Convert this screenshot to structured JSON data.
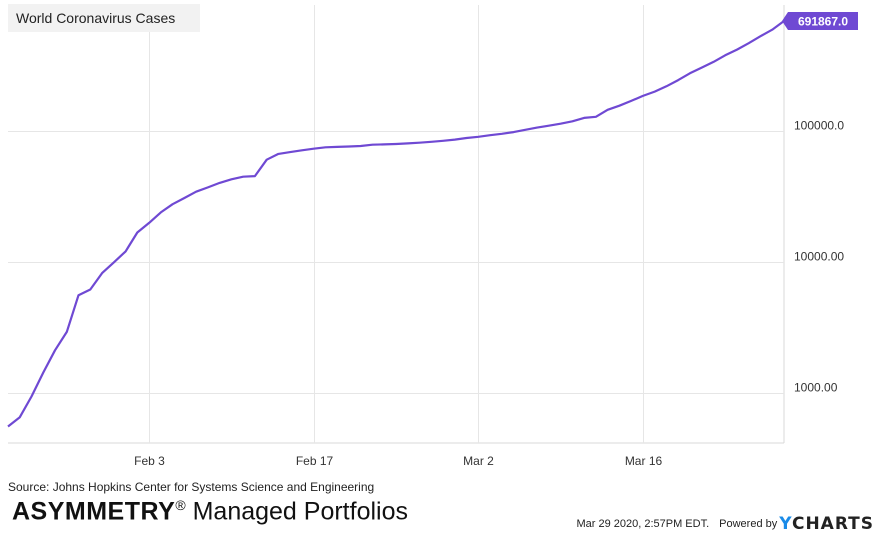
{
  "chart_data": {
    "type": "line",
    "title": "World Coronavirus Cases",
    "yscale": "log",
    "xlabel": "",
    "ylabel": "",
    "x_ticks": [
      "Feb 3",
      "Feb 17",
      "Mar 2",
      "Mar 16"
    ],
    "y_ticks": [
      "1000.00",
      "10000.00",
      "100000.0"
    ],
    "ylim": [
      500,
      1000000
    ],
    "xlim": [
      "2020-01-22",
      "2020-03-28"
    ],
    "grid": true,
    "last_value_label": "691867.0",
    "series": [
      {
        "color": "#6f49d3",
        "x": [
          "2020-01-22",
          "2020-01-23",
          "2020-01-24",
          "2020-01-25",
          "2020-01-26",
          "2020-01-27",
          "2020-01-28",
          "2020-01-29",
          "2020-01-30",
          "2020-01-31",
          "2020-02-01",
          "2020-02-02",
          "2020-02-03",
          "2020-02-04",
          "2020-02-05",
          "2020-02-06",
          "2020-02-07",
          "2020-02-08",
          "2020-02-09",
          "2020-02-10",
          "2020-02-11",
          "2020-02-12",
          "2020-02-13",
          "2020-02-14",
          "2020-02-15",
          "2020-02-16",
          "2020-02-17",
          "2020-02-18",
          "2020-02-19",
          "2020-02-20",
          "2020-02-21",
          "2020-02-22",
          "2020-02-23",
          "2020-02-24",
          "2020-02-25",
          "2020-02-26",
          "2020-02-27",
          "2020-02-28",
          "2020-02-29",
          "2020-03-01",
          "2020-03-02",
          "2020-03-03",
          "2020-03-04",
          "2020-03-05",
          "2020-03-06",
          "2020-03-07",
          "2020-03-08",
          "2020-03-09",
          "2020-03-10",
          "2020-03-11",
          "2020-03-12",
          "2020-03-13",
          "2020-03-14",
          "2020-03-15",
          "2020-03-16",
          "2020-03-17",
          "2020-03-18",
          "2020-03-19",
          "2020-03-20",
          "2020-03-21",
          "2020-03-22",
          "2020-03-23",
          "2020-03-24",
          "2020-03-25",
          "2020-03-26",
          "2020-03-27",
          "2020-03-28"
        ],
        "values": [
          555,
          654,
          941,
          1434,
          2118,
          2927,
          5578,
          6166,
          8234,
          9927,
          12038,
          16787,
          19887,
          23898,
          27643,
          30802,
          34396,
          37130,
          40160,
          42769,
          44811,
          45222,
          60370,
          66887,
          69032,
          71226,
          73260,
          75138,
          75641,
          76199,
          76843,
          78599,
          78985,
          79570,
          80415,
          81397,
          82756,
          84124,
          86013,
          88371,
          90309,
          92844,
          95124,
          98000,
          102050,
          106100,
          109800,
          113600,
          118600,
          125900,
          128300,
          145200,
          156100,
          169800,
          185200,
          199800,
          219200,
          244600,
          275500,
          304900,
          337000,
          378200,
          418000,
          467600,
          529600,
          593300,
          691867
        ]
      }
    ]
  },
  "footer": {
    "source": "Source: Johns Hopkins Center for Systems Science and Engineering",
    "brand_bold": "ASYMMETRY",
    "brand_reg": "®",
    "brand_rest": " Managed Portfolios",
    "timestamp": "Mar 29 2020, 2:57PM EDT.",
    "powered_by": "Powered by",
    "logo_y": "Y",
    "logo_rest": "CHARTS"
  },
  "colors": {
    "line": "#6f49d3",
    "grid": "#e6e6e6",
    "label_bg": "#6f49d3",
    "logo_accent": "#1a8be8"
  }
}
